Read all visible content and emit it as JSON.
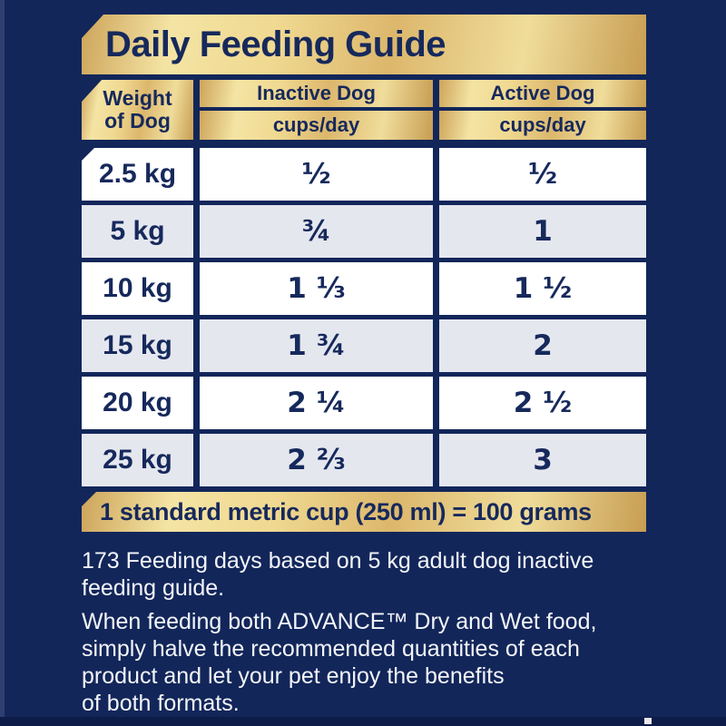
{
  "title": "Daily Feeding Guide",
  "colors": {
    "background_navy": "#12265a",
    "text_navy": "#16295c",
    "gold_light": "#f4e4a4",
    "gold_dark": "#c79d52",
    "row_white": "#ffffff",
    "row_alt": "#e5e7ef",
    "note_text": "#f4f5f8"
  },
  "table": {
    "header": {
      "weight": "Weight\nof Dog",
      "inactive": "Inactive Dog",
      "active": "Active Dog",
      "unit": "cups/day"
    },
    "rows": [
      {
        "weight": "2.5 kg",
        "inactive": "½",
        "active": "½"
      },
      {
        "weight": "5 kg",
        "inactive": "¾",
        "active": "1"
      },
      {
        "weight": "10 kg",
        "inactive": "1 ⅓",
        "active": "1 ½"
      },
      {
        "weight": "15 kg",
        "inactive": "1 ¾",
        "active": "2"
      },
      {
        "weight": "20 kg",
        "inactive": "2 ¼",
        "active": "2 ½"
      },
      {
        "weight": "25 kg",
        "inactive": "2 ⅔",
        "active": "3"
      }
    ]
  },
  "cup_note": "1 standard metric cup (250 ml) = 100 grams",
  "notes": {
    "feeding_days_lines": [
      "173 Feeding days based on 5 kg adult dog inactive",
      "feeding guide."
    ],
    "mixed_feeding_lines": [
      "When feeding both ADVANCE™ Dry and Wet food,",
      "simply halve the recommended quantities of each",
      "product and let your pet enjoy the benefits",
      "of both formats."
    ]
  }
}
